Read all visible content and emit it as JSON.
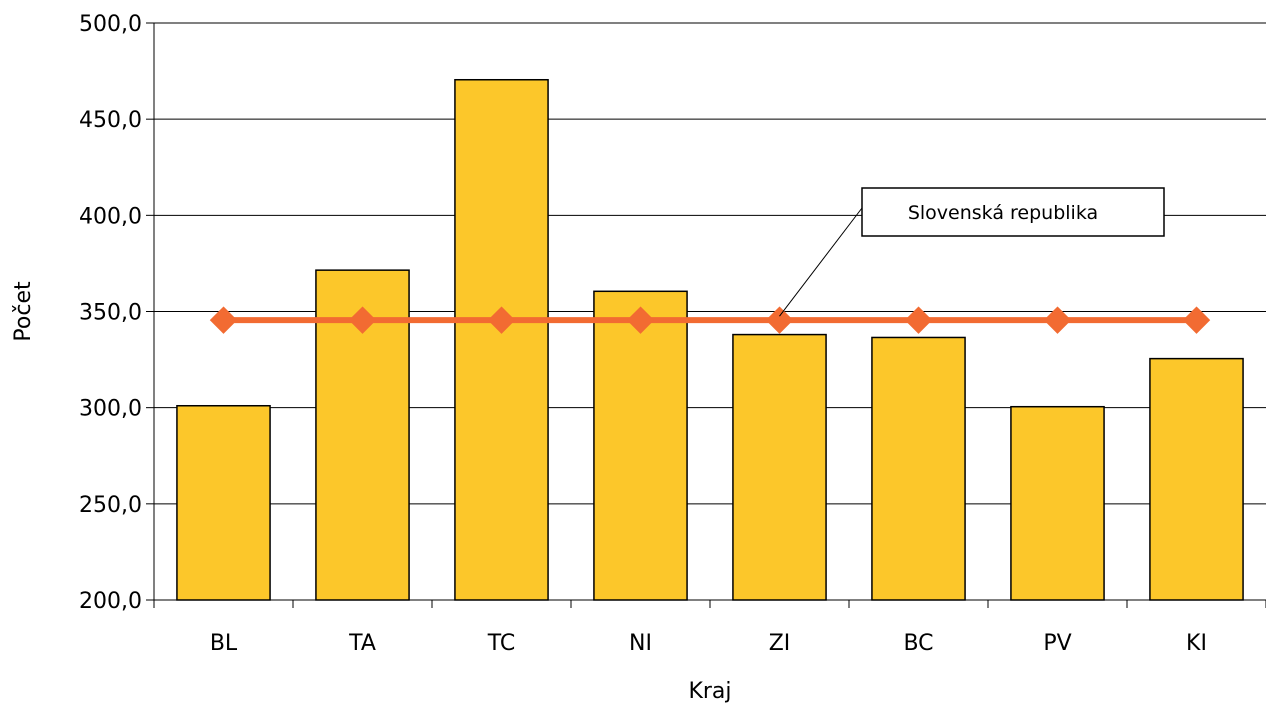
{
  "chart_data": {
    "type": "bar",
    "categories": [
      "BL",
      "TA",
      "TC",
      "NI",
      "ZI",
      "BC",
      "PV",
      "KI"
    ],
    "series": [
      {
        "type": "bar",
        "values": [
          301.0,
          371.5,
          470.5,
          360.5,
          338.0,
          336.5,
          300.5,
          325.5
        ],
        "color": "#FCC72A"
      },
      {
        "name": "Slovenská republika",
        "type": "line",
        "values": [
          345.5,
          345.5,
          345.5,
          345.5,
          345.5,
          345.5,
          345.5,
          345.5
        ],
        "color": "#F26B32"
      }
    ],
    "xlabel": "Kraj",
    "ylabel": "Počet",
    "ylim": [
      200,
      500
    ],
    "yticks": [
      "200,0",
      "250,0",
      "300,0",
      "350,0",
      "400,0",
      "450,0",
      "500,0"
    ],
    "grid": true,
    "annotation": "Slovenská republika"
  }
}
